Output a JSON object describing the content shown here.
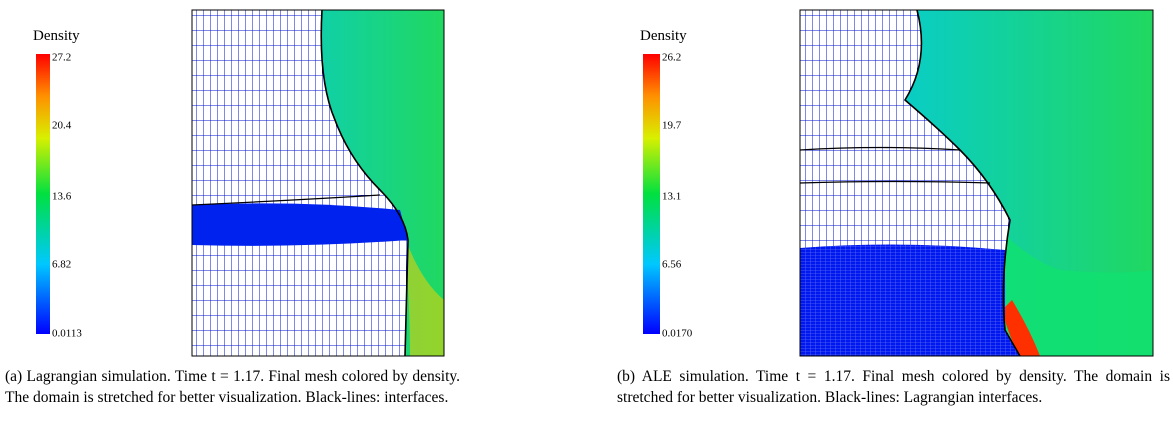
{
  "panels": [
    {
      "colorbar": {
        "title": "Density",
        "ticks": [
          "27.2",
          "20.4",
          "13.6",
          "6.82",
          "0.0113"
        ]
      },
      "caption": "(a) Lagrangian simulation. Time t = 1.17. Final mesh colored by density. The domain is stretched for better visualization. Black-lines: interfaces."
    },
    {
      "colorbar": {
        "title": "Density",
        "ticks": [
          "26.2",
          "19.7",
          "13.1",
          "6.56",
          "0.0170"
        ]
      },
      "caption": "(b) ALE simulation. Time t = 1.17. Final mesh colored by density. The domain is stretched for better visualization. Black-lines: Lagrangian interfaces."
    }
  ]
}
